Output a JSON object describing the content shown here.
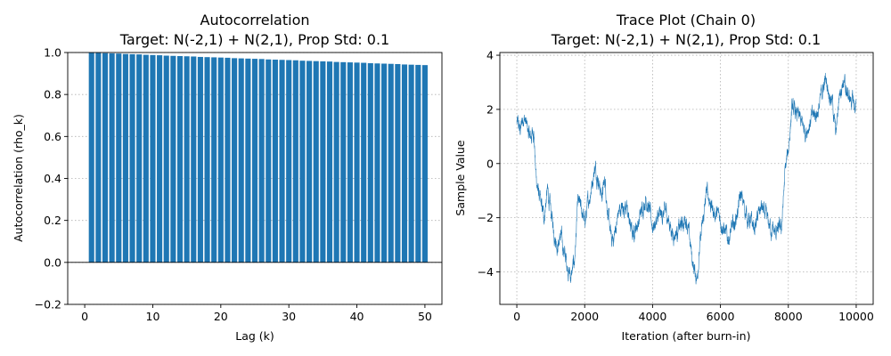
{
  "chart_data": [
    {
      "type": "bar",
      "title_line1": "Autocorrelation",
      "title_line2": "Target: N(-2,1) + N(2,1), Prop Std: 0.1",
      "xlabel": "Lag (k)",
      "ylabel": "Autocorrelation (rho_k)",
      "xlim": [
        -2.5,
        52.5
      ],
      "ylim": [
        -0.2,
        1.0
      ],
      "xticks": [
        0,
        10,
        20,
        30,
        40,
        50
      ],
      "yticks": [
        -0.2,
        0.0,
        0.2,
        0.4,
        0.6,
        0.8,
        1.0
      ],
      "ytick_labels": [
        "−0.2",
        "0.0",
        "0.2",
        "0.4",
        "0.6",
        "0.8",
        "1.0"
      ],
      "grid": "y-dotted",
      "baseline": 0.0,
      "color": "#1f77b4",
      "lags": [
        1,
        2,
        3,
        4,
        5,
        6,
        7,
        8,
        9,
        10,
        11,
        12,
        13,
        14,
        15,
        16,
        17,
        18,
        19,
        20,
        21,
        22,
        23,
        24,
        25,
        26,
        27,
        28,
        29,
        30,
        31,
        32,
        33,
        34,
        35,
        36,
        37,
        38,
        39,
        40,
        41,
        42,
        43,
        44,
        45,
        46,
        47,
        48,
        49,
        50
      ],
      "values": [
        0.999,
        0.998,
        0.997,
        0.996,
        0.995,
        0.993,
        0.992,
        0.991,
        0.989,
        0.988,
        0.987,
        0.985,
        0.984,
        0.983,
        0.982,
        0.981,
        0.979,
        0.978,
        0.977,
        0.976,
        0.975,
        0.973,
        0.972,
        0.971,
        0.97,
        0.969,
        0.967,
        0.966,
        0.965,
        0.964,
        0.963,
        0.961,
        0.96,
        0.959,
        0.958,
        0.957,
        0.955,
        0.954,
        0.953,
        0.952,
        0.951,
        0.949,
        0.948,
        0.947,
        0.946,
        0.945,
        0.943,
        0.942,
        0.941,
        0.94
      ]
    },
    {
      "type": "line",
      "title_line1": "Trace Plot (Chain 0)",
      "title_line2": "Target: N(-2,1) + N(2,1), Prop Std: 0.1",
      "xlabel": "Iteration (after burn-in)",
      "ylabel": "Sample Value",
      "xlim": [
        -500,
        10500
      ],
      "ylim": [
        -5.2,
        4.1
      ],
      "xticks": [
        0,
        2000,
        4000,
        6000,
        8000,
        10000
      ],
      "yticks": [
        -4,
        -2,
        0,
        2,
        4
      ],
      "ytick_labels": [
        "−4",
        "−2",
        "0",
        "2",
        "4"
      ],
      "grid": "both-dotted",
      "color": "#1f77b4",
      "n_samples": 10000,
      "trend_x": [
        0,
        100,
        200,
        300,
        400,
        500,
        550,
        600,
        700,
        800,
        900,
        1000,
        1100,
        1200,
        1300,
        1400,
        1500,
        1600,
        1700,
        1800,
        1900,
        2000,
        2100,
        2200,
        2300,
        2400,
        2500,
        2600,
        2700,
        2800,
        2900,
        3000,
        3200,
        3400,
        3600,
        3800,
        4000,
        4200,
        4400,
        4600,
        4800,
        5000,
        5200,
        5300,
        5400,
        5600,
        5800,
        6000,
        6200,
        6400,
        6600,
        6800,
        7000,
        7200,
        7400,
        7600,
        7800,
        7900,
        8000,
        8100,
        8300,
        8500,
        8700,
        8900,
        9000,
        9100,
        9300,
        9400,
        9500,
        9600,
        9700,
        9800,
        9900,
        10000
      ],
      "trend_y": [
        1.5,
        1.2,
        1.8,
        1.3,
        0.9,
        1.3,
        -0.2,
        -0.8,
        -1.5,
        -2.0,
        -1.0,
        -1.8,
        -2.5,
        -3.0,
        -2.7,
        -3.3,
        -3.8,
        -4.2,
        -3.6,
        -1.5,
        -1.7,
        -2.2,
        -1.5,
        -0.8,
        -0.1,
        -0.5,
        -1.2,
        -0.6,
        -2.0,
        -3.0,
        -2.5,
        -1.8,
        -1.5,
        -2.6,
        -2.1,
        -1.2,
        -2.3,
        -2.0,
        -1.8,
        -2.6,
        -2.4,
        -2.0,
        -3.8,
        -4.2,
        -3.0,
        -1.0,
        -1.8,
        -2.0,
        -2.8,
        -2.3,
        -1.2,
        -2.0,
        -2.4,
        -1.6,
        -2.2,
        -2.6,
        -2.4,
        -0.4,
        0.5,
        2.0,
        1.7,
        1.2,
        1.7,
        2.0,
        2.7,
        3.1,
        2.3,
        1.0,
        2.6,
        3.1,
        2.7,
        2.4,
        2.3,
        2.0
      ],
      "noise_amplitude": 0.35
    }
  ]
}
